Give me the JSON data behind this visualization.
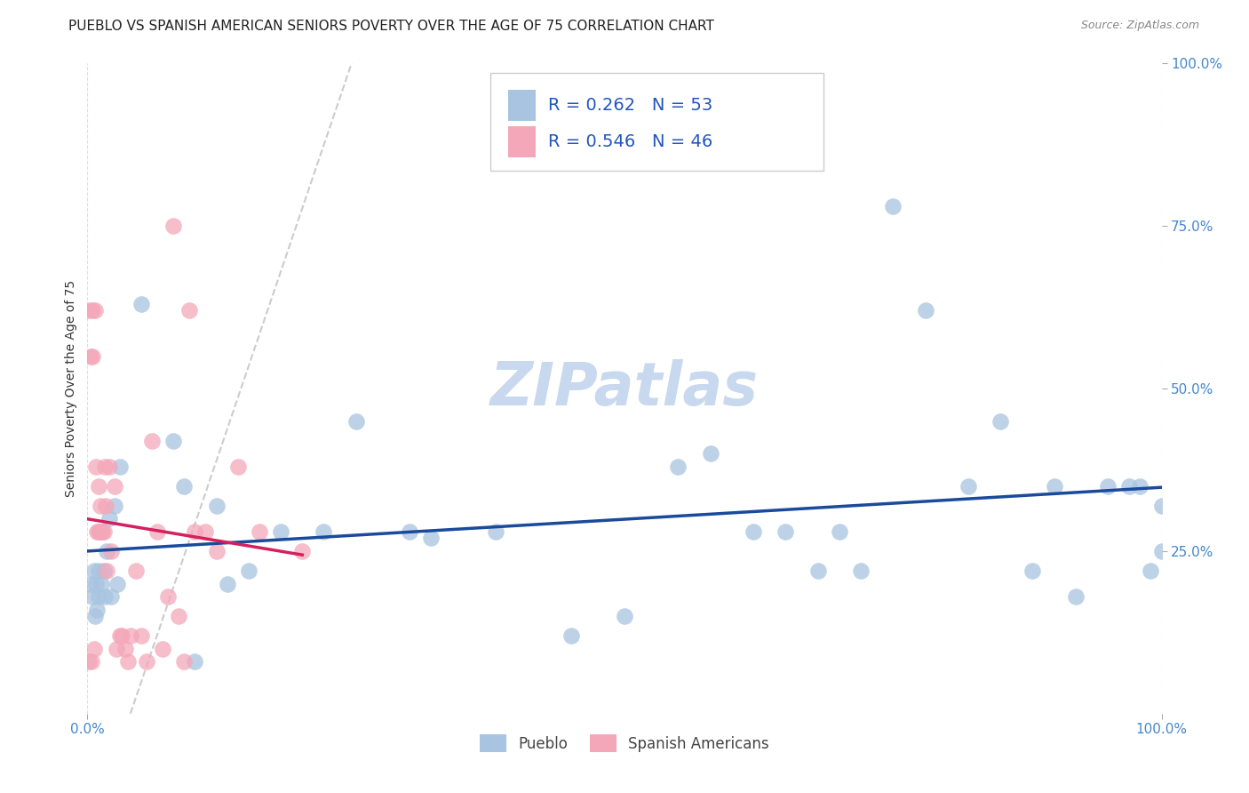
{
  "title": "PUEBLO VS SPANISH AMERICAN SENIORS POVERTY OVER THE AGE OF 75 CORRELATION CHART",
  "source": "Source: ZipAtlas.com",
  "ylabel": "Seniors Poverty Over the Age of 75",
  "watermark": "ZIPatlas",
  "legend_r_pueblo": "R = 0.262",
  "legend_n_pueblo": "N = 53",
  "legend_r_spanish": "R = 0.546",
  "legend_n_spanish": "N = 46",
  "pueblo_color": "#a8c4e0",
  "spanish_color": "#f4a7b9",
  "line_pueblo_color": "#1a4a9c",
  "line_spanish_color": "#d42060",
  "pueblo_x": [
    0.003,
    0.005,
    0.006,
    0.007,
    0.008,
    0.009,
    0.01,
    0.01,
    0.011,
    0.013,
    0.015,
    0.016,
    0.018,
    0.02,
    0.022,
    0.025,
    0.028,
    0.03,
    0.05,
    0.08,
    0.09,
    0.1,
    0.12,
    0.13,
    0.15,
    0.18,
    0.22,
    0.25,
    0.3,
    0.32,
    0.38,
    0.45,
    0.5,
    0.55,
    0.58,
    0.62,
    0.65,
    0.68,
    0.7,
    0.72,
    0.75,
    0.78,
    0.82,
    0.85,
    0.88,
    0.9,
    0.92,
    0.95,
    0.97,
    0.98,
    0.99,
    1.0,
    1.0
  ],
  "pueblo_y": [
    0.2,
    0.18,
    0.22,
    0.15,
    0.2,
    0.16,
    0.18,
    0.22,
    0.28,
    0.2,
    0.22,
    0.18,
    0.25,
    0.3,
    0.18,
    0.32,
    0.2,
    0.38,
    0.63,
    0.42,
    0.35,
    0.08,
    0.32,
    0.2,
    0.22,
    0.28,
    0.28,
    0.45,
    0.28,
    0.27,
    0.28,
    0.12,
    0.15,
    0.38,
    0.4,
    0.28,
    0.28,
    0.22,
    0.28,
    0.22,
    0.78,
    0.62,
    0.35,
    0.45,
    0.22,
    0.35,
    0.18,
    0.35,
    0.35,
    0.35,
    0.22,
    0.32,
    0.25
  ],
  "spanish_x": [
    0.001,
    0.002,
    0.003,
    0.004,
    0.005,
    0.005,
    0.006,
    0.007,
    0.008,
    0.009,
    0.01,
    0.01,
    0.011,
    0.012,
    0.013,
    0.014,
    0.015,
    0.016,
    0.017,
    0.018,
    0.02,
    0.022,
    0.025,
    0.027,
    0.03,
    0.032,
    0.035,
    0.038,
    0.04,
    0.045,
    0.05,
    0.055,
    0.06,
    0.065,
    0.07,
    0.075,
    0.08,
    0.085,
    0.09,
    0.095,
    0.1,
    0.11,
    0.12,
    0.14,
    0.16,
    0.2
  ],
  "spanish_y": [
    0.08,
    0.62,
    0.55,
    0.08,
    0.55,
    0.62,
    0.1,
    0.62,
    0.38,
    0.28,
    0.28,
    0.35,
    0.28,
    0.32,
    0.28,
    0.28,
    0.28,
    0.38,
    0.32,
    0.22,
    0.38,
    0.25,
    0.35,
    0.1,
    0.12,
    0.12,
    0.1,
    0.08,
    0.12,
    0.22,
    0.12,
    0.08,
    0.42,
    0.28,
    0.1,
    0.18,
    0.75,
    0.15,
    0.08,
    0.62,
    0.28,
    0.28,
    0.25,
    0.38,
    0.28,
    0.25
  ],
  "xlim": [
    0.0,
    1.0
  ],
  "ylim": [
    0.0,
    1.0
  ],
  "right_ytick_labels": [
    "100.0%",
    "75.0%",
    "50.0%",
    "25.0%"
  ],
  "right_ytick_positions": [
    1.0,
    0.75,
    0.5,
    0.25
  ],
  "xtick_labels": [
    "0.0%",
    "100.0%"
  ],
  "xtick_positions": [
    0.0,
    1.0
  ],
  "title_fontsize": 11,
  "source_fontsize": 9,
  "ylabel_fontsize": 10,
  "legend_fontsize": 13,
  "watermark_fontsize": 48,
  "watermark_color": "#c8d8ee",
  "grid_color": "#e0e0e0",
  "background_color": "#ffffff",
  "diag_line_color": "#cccccc",
  "tick_color": "#4488cc",
  "marker_size": 180,
  "marker_alpha": 0.75,
  "line_lw": 2.5
}
